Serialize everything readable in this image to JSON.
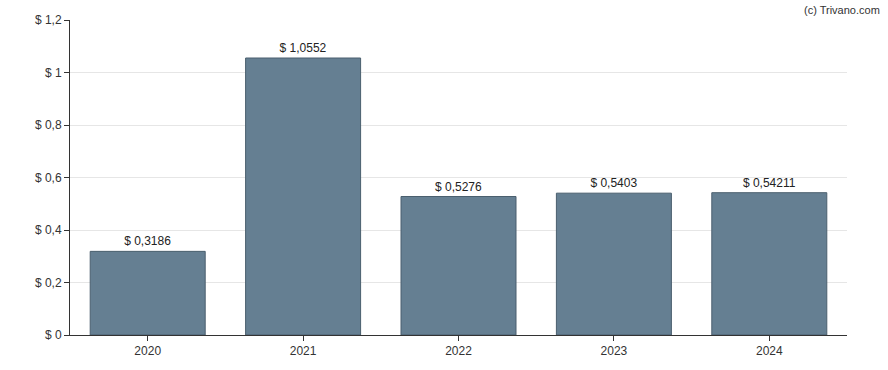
{
  "chart_data": {
    "type": "bar",
    "categories": [
      "2020",
      "2021",
      "2022",
      "2023",
      "2024"
    ],
    "values": [
      0.3186,
      1.0552,
      0.5276,
      0.5403,
      0.54211
    ],
    "value_labels": [
      "$ 0,3186",
      "$ 1,0552",
      "$ 0,5276",
      "$ 0,5403",
      "$ 0,54211"
    ],
    "data_labels": true,
    "color": "#657f92",
    "ylim": [
      0,
      1.2
    ],
    "yticks": [
      {
        "value": 0,
        "label": "$ 0"
      },
      {
        "value": 0.2,
        "label": "$ 0,2"
      },
      {
        "value": 0.4,
        "label": "$ 0,4"
      },
      {
        "value": 0.6,
        "label": "$ 0,6"
      },
      {
        "value": 0.8,
        "label": "$ 0,8"
      },
      {
        "value": 1,
        "label": "$ 1"
      },
      {
        "value": 1.2,
        "label": "$ 1,2"
      }
    ],
    "grid": true,
    "annotations": [
      "(c) Trivano.com"
    ]
  }
}
